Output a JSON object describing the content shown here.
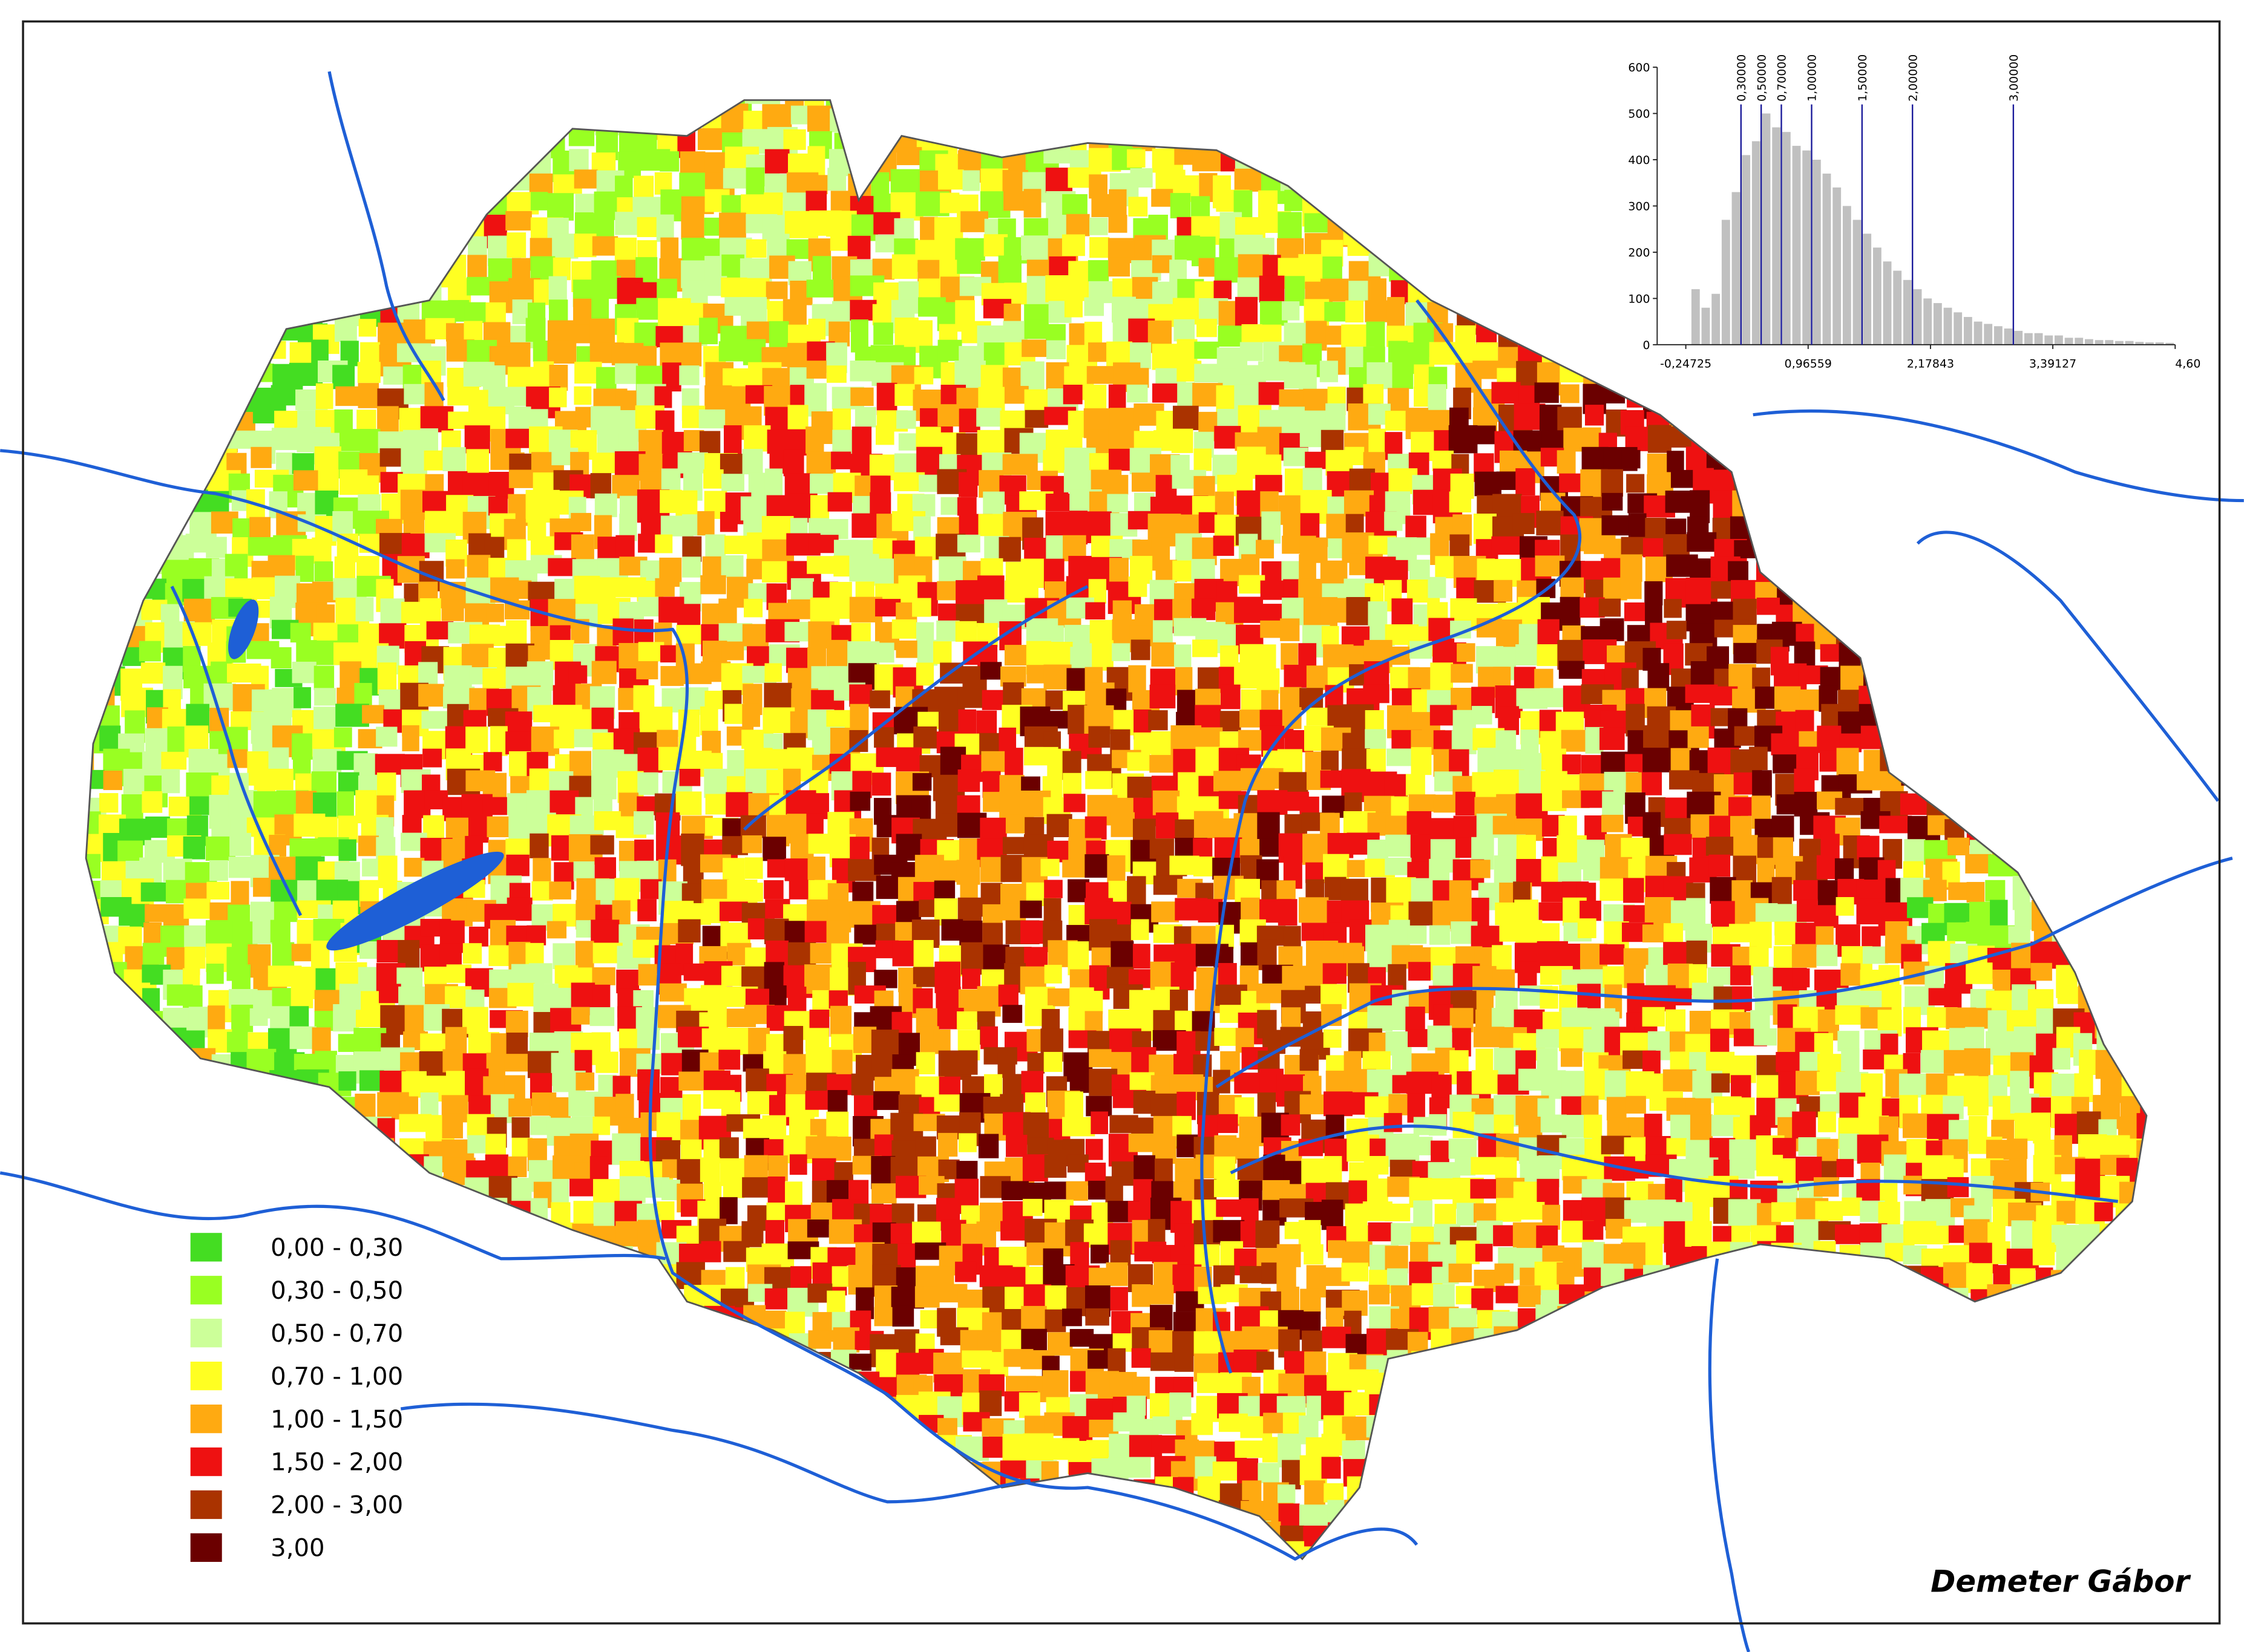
{
  "map": {
    "legend": [
      {
        "color": "#44dd22",
        "label": "0,00 - 0,30"
      },
      {
        "color": "#99ff22",
        "label": "0,30 - 0,50"
      },
      {
        "color": "#ccff99",
        "label": "0,50 - 0,70"
      },
      {
        "color": "#ffff22",
        "label": "0,70 - 1,00"
      },
      {
        "color": "#ffaa11",
        "label": "1,00 - 1,50"
      },
      {
        "color": "#ee1111",
        "label": "1,50 - 2,00"
      },
      {
        "color": "#aa3300",
        "label": "2,00 - 3,00"
      },
      {
        "color": "#6b0000",
        "label": "3,00"
      }
    ],
    "credit": "Demeter Gábor"
  },
  "chart_data": {
    "type": "histogram",
    "bins": [
      -0.2,
      -0.1,
      0,
      0.1,
      0.2,
      0.3,
      0.4,
      0.5,
      0.6,
      0.7,
      0.8,
      0.9,
      1.0,
      1.1,
      1.2,
      1.3,
      1.4,
      1.5,
      1.6,
      1.7,
      1.8,
      1.9,
      2.0,
      2.1,
      2.2,
      2.3,
      2.4,
      2.5,
      2.6,
      2.7,
      2.8,
      2.9,
      3.0,
      3.1,
      3.2,
      3.3,
      3.4,
      3.5,
      3.6,
      3.7,
      3.8,
      3.9,
      4.0,
      4.1,
      4.2,
      4.3,
      4.4,
      4.5,
      4.6
    ],
    "values": [
      120,
      80,
      110,
      270,
      330,
      410,
      440,
      500,
      470,
      460,
      430,
      420,
      400,
      370,
      340,
      300,
      270,
      240,
      210,
      180,
      160,
      140,
      120,
      100,
      90,
      80,
      70,
      60,
      50,
      45,
      40,
      35,
      30,
      25,
      25,
      20,
      20,
      15,
      15,
      12,
      10,
      10,
      8,
      8,
      6,
      5,
      5,
      4
    ],
    "color": "#c0c0c0",
    "xlim": [
      -0.24725,
      4.60411
    ],
    "xticks": [
      {
        "value": -0.24725,
        "label": "-0,24725"
      },
      {
        "value": 0.96559,
        "label": "0,96559"
      },
      {
        "value": 2.17843,
        "label": "2,17843"
      },
      {
        "value": 3.39127,
        "label": "3,39127"
      },
      {
        "value": 4.60411,
        "label": "4,60"
      }
    ],
    "ylim": [
      0,
      600
    ],
    "yticks": [
      0,
      100,
      200,
      300,
      400,
      500,
      600
    ],
    "breaks": [
      {
        "value": 0.3,
        "label": "0,30000"
      },
      {
        "value": 0.5,
        "label": "0,50000"
      },
      {
        "value": 0.7,
        "label": "0,70000"
      },
      {
        "value": 1.0,
        "label": "1,00000"
      },
      {
        "value": 1.5,
        "label": "1,50000"
      },
      {
        "value": 2.0,
        "label": "2,00000"
      },
      {
        "value": 3.0,
        "label": "3,00000"
      }
    ],
    "break_color": "#1a1a9a"
  }
}
